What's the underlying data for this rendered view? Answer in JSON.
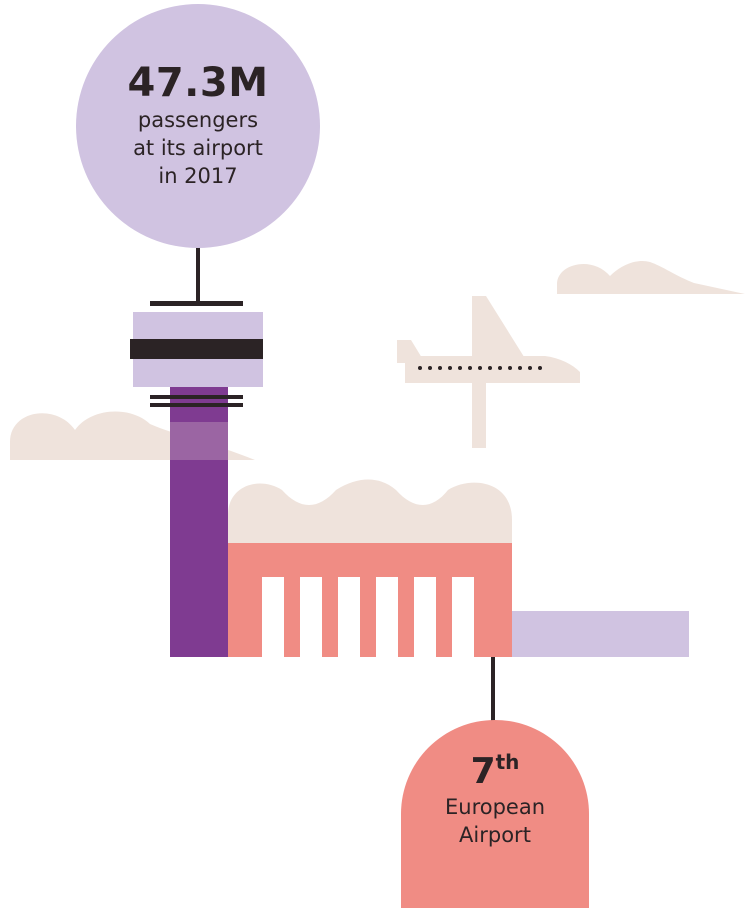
{
  "colors": {
    "lavender": "#d0c3e1",
    "purple": "#7f3b91",
    "coral": "#f08c84",
    "sand": "#efe3dc",
    "ink": "#2b2325",
    "white": "#ffffff"
  },
  "passengers_stat": {
    "value": "47.3M",
    "caption_line1": "passengers",
    "caption_line2": "at its airport",
    "caption_line3": "in 2017"
  },
  "ranking": {
    "rank_number": "7",
    "rank_suffix": "th",
    "caption_line1": "European",
    "caption_line2": "Airport"
  },
  "icons": {
    "tower": "control-tower-icon",
    "terminal": "terminal-building-icon",
    "airplane": "airplane-icon",
    "clouds": "cloud-icon"
  }
}
